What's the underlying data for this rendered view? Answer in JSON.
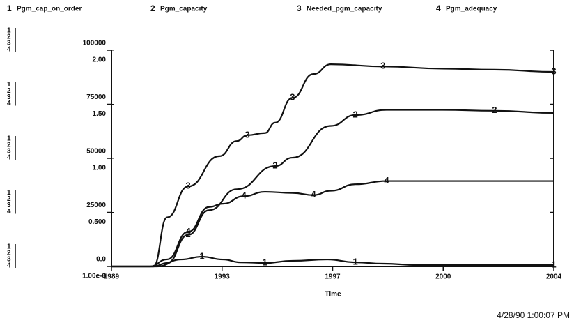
{
  "chart_data": {
    "type": "line",
    "xlabel": "Time",
    "timestamp": "4/28/90   1:00:07 PM",
    "xlim": [
      1989,
      2004
    ],
    "xticks": [
      1989,
      {
        "value": 1992.75,
        "label": "1993"
      },
      {
        "value": 1996.5,
        "label": "1997"
      },
      {
        "value": 2000.25,
        "label": "2000"
      },
      2004
    ],
    "ylim": [
      0,
      100000
    ],
    "yticks": [
      {
        "value": 0,
        "label": "0.0"
      },
      25000,
      50000,
      75000,
      100000
    ],
    "y2lim": [
      0,
      2
    ],
    "y2ticks": [
      {
        "value": 1e-06,
        "label": "1.00e-6"
      },
      {
        "value": 0.5,
        "label": "0.500"
      },
      {
        "value": 1,
        "label": "1.00"
      },
      {
        "value": 1.5,
        "label": "1.50"
      },
      {
        "value": 2,
        "label": "2.00"
      }
    ],
    "series": [
      {
        "label": "1",
        "name": "Pgm_cap_on_order",
        "color": "#111111",
        "x": [
          1989,
          1990.54,
          1991.36,
          1992.07,
          1992.78,
          1993.37,
          1994.2,
          1995.14,
          1996.32,
          1997.27,
          1998.21,
          1999.39,
          2004
        ],
        "values": [
          0,
          0,
          3200,
          4500,
          3200,
          1900,
          1600,
          2600,
          3200,
          1900,
          1300,
          650,
          650
        ]
      },
      {
        "label": "2",
        "name": "Pgm_capacity",
        "color": "#111111",
        "x": [
          1989,
          1990.42,
          1990.89,
          1991.6,
          1992.31,
          1993.25,
          1994.55,
          1995.14,
          1996.44,
          1997.27,
          1998.33,
          2000.22,
          2001.99,
          2004
        ],
        "values": [
          0,
          0,
          1600,
          14600,
          26000,
          35700,
          46400,
          50300,
          65000,
          70000,
          72400,
          72400,
          72000,
          71000
        ]
      },
      {
        "label": "3",
        "name": "Needed_pgm_capacity",
        "color": "#111111",
        "x": [
          1989,
          1990.42,
          1990.89,
          1991.6,
          1992.66,
          1993.25,
          1993.61,
          1994.2,
          1994.55,
          1995.14,
          1995.85,
          1996.44,
          1998.21,
          2000.22,
          2001.99,
          2004
        ],
        "values": [
          0,
          0,
          22700,
          37000,
          51000,
          58000,
          60700,
          61700,
          66500,
          78000,
          89000,
          93500,
          92500,
          91500,
          91000,
          90000
        ]
      },
      {
        "label": "4",
        "name": "Pgm_adequacy",
        "color": "#111111",
        "axis": "y2",
        "x": [
          1989,
          1990.3,
          1990.89,
          1991.6,
          1992.31,
          1992.78,
          1993.49,
          1994.2,
          1995.14,
          1995.85,
          1996.44,
          1997.27,
          1998.33,
          2004
        ],
        "values": [
          0,
          0,
          0.065,
          0.32,
          0.55,
          0.58,
          0.65,
          0.69,
          0.68,
          0.66,
          0.7,
          0.76,
          0.79,
          0.79
        ]
      }
    ]
  }
}
